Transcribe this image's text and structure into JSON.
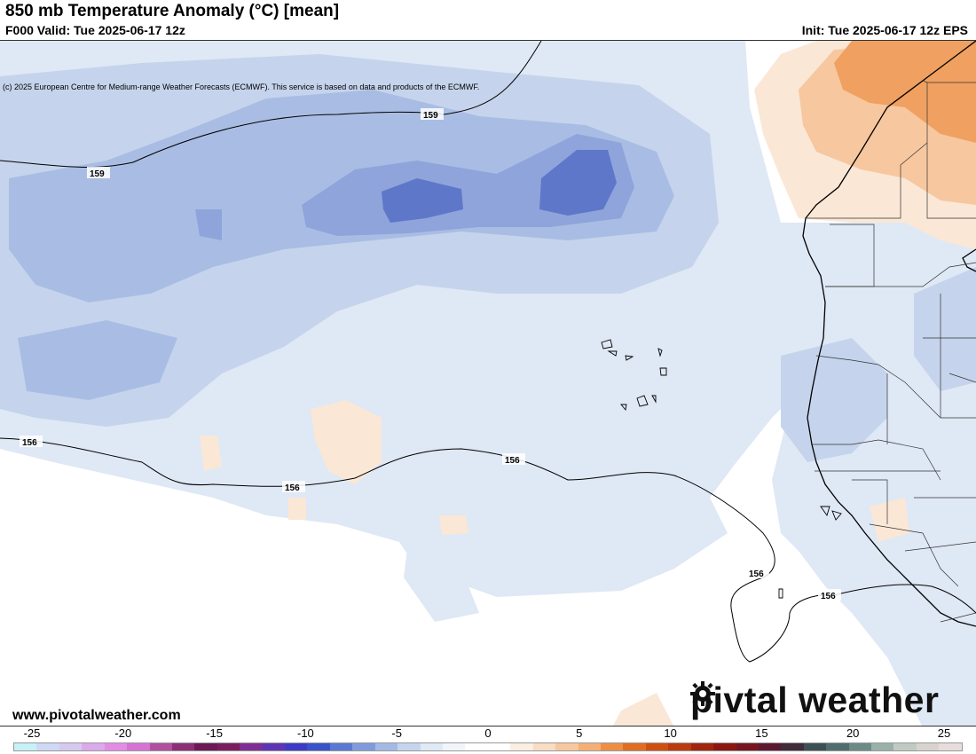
{
  "header": {
    "title": "850 mb Temperature Anomaly (°C) [mean]",
    "valid": "F000 Valid: Tue 2025-06-17 12z",
    "init": "Init: Tue 2025-06-17 12z EPS",
    "credit": "(c) 2025 European Centre for Medium-range Weather Forecasts (ECMWF). This service is based on data and products of the ECMWF."
  },
  "map": {
    "contours": [
      {
        "label": "159"
      },
      {
        "label": "159"
      },
      {
        "label": "156"
      },
      {
        "label": "156"
      },
      {
        "label": "156"
      },
      {
        "label": "156"
      },
      {
        "label": "156"
      }
    ]
  },
  "footer": {
    "url": "www.pivotalweather.com",
    "brand_before": "piv",
    "brand_after": "tal weather"
  },
  "colorbar": {
    "ticks": [
      "-25",
      "-20",
      "-15",
      "-10",
      "-5",
      "0",
      "5",
      "10",
      "15",
      "20",
      "25"
    ],
    "colors": [
      "#c6f2f7",
      "#cfd8f4",
      "#d6c9f0",
      "#dca9ec",
      "#e28ce6",
      "#d672d4",
      "#b1509f",
      "#8c2f77",
      "#6b1a55",
      "#7a1d5e",
      "#7f2f93",
      "#5d35b4",
      "#3e3ac6",
      "#3852c9",
      "#5a79d4",
      "#809bdc",
      "#a4b9e6",
      "#c6d5ef",
      "#e0e9f6",
      "#f1f5fb",
      "#ffffff",
      "#ffffff",
      "#fbeee3",
      "#f8dcc4",
      "#f7c79f",
      "#f5af76",
      "#ee8e45",
      "#e16d22",
      "#cf4f10",
      "#bb3a0f",
      "#a2250e",
      "#8c1712",
      "#761520",
      "#5c1830",
      "#3f2b3a",
      "#3d4f55",
      "#4f6d6d",
      "#6d8b86",
      "#9ab1aa",
      "#c0cac3",
      "#d9d3cd",
      "#e8dcdc"
    ]
  }
}
